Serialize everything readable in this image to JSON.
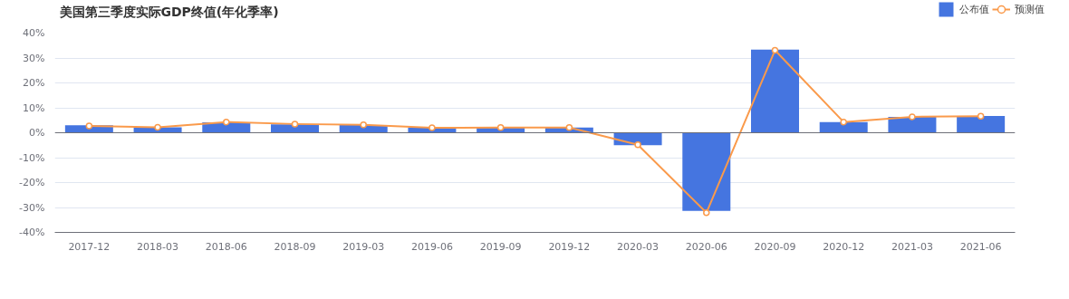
{
  "chart_data": {
    "type": "bar",
    "title": "美国第三季度实际GDP终值(年化季率)",
    "categories": [
      "2017-12",
      "2018-03",
      "2018-06",
      "2018-09",
      "2019-03",
      "2019-06",
      "2019-09",
      "2019-12",
      "2020-03",
      "2020-06",
      "2020-09",
      "2020-12",
      "2021-03",
      "2021-06"
    ],
    "series": [
      {
        "name": "公布值",
        "color": "#4575e0",
        "values": [
          3.0,
          2.2,
          4.2,
          3.4,
          3.1,
          2.0,
          2.1,
          2.1,
          -5.0,
          -31.4,
          33.4,
          4.3,
          6.4,
          6.7
        ]
      },
      {
        "name": "预测值",
        "type": "line",
        "color": "#fa9a4b",
        "values": [
          2.7,
          2.2,
          4.3,
          3.5,
          3.2,
          2.0,
          2.1,
          2.1,
          -4.8,
          -32.1,
          33.1,
          4.3,
          6.4,
          6.6
        ]
      }
    ],
    "ylim": [
      -40,
      40
    ],
    "yticks": [
      {
        "value": -40,
        "label": "-40%"
      },
      {
        "value": -30,
        "label": "-30%"
      },
      {
        "value": -20,
        "label": "-20%"
      },
      {
        "value": -10,
        "label": "-10%"
      },
      {
        "value": 0,
        "label": "0%"
      },
      {
        "value": 10,
        "label": "10%"
      },
      {
        "value": 20,
        "label": "20%"
      },
      {
        "value": 30,
        "label": "30%"
      },
      {
        "value": 40,
        "label": "40%"
      }
    ],
    "grid": "y",
    "legend": "top right",
    "marker": "circle"
  }
}
